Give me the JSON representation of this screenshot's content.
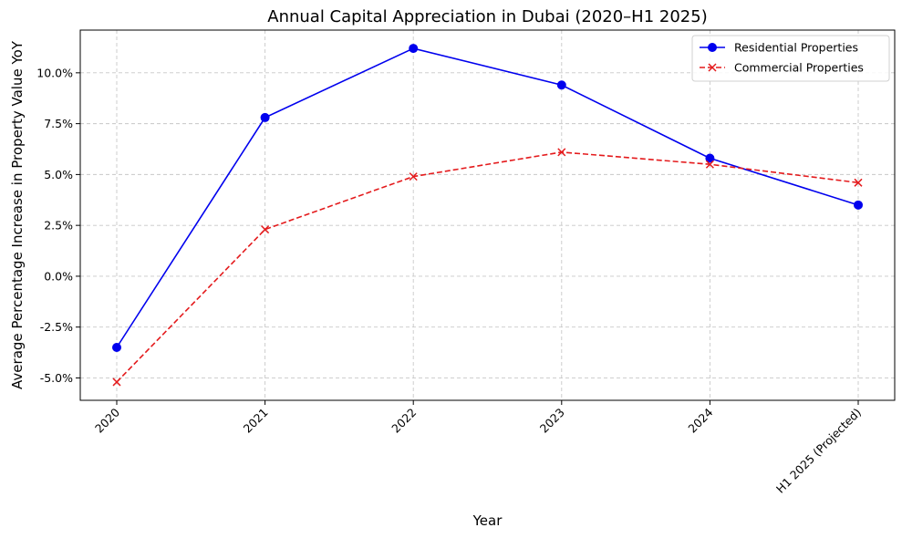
{
  "chart_data": {
    "type": "line",
    "title": "Annual Capital Appreciation in Dubai (2020–H1 2025)",
    "xlabel": "Year",
    "ylabel": "Average Percentage Increase in Property Value YoY",
    "categories": [
      "2020",
      "2021",
      "2022",
      "2023",
      "2024",
      "H1 2025 (Projected)"
    ],
    "ylim": [
      -6.1,
      12.1
    ],
    "yticks": [
      -5.0,
      -2.5,
      0.0,
      2.5,
      5.0,
      7.5,
      10.0
    ],
    "ytick_labels": [
      "-5.0%",
      "-2.5%",
      "0.0%",
      "2.5%",
      "5.0%",
      "7.5%",
      "10.0%"
    ],
    "grid": true,
    "legend_position": "top-right",
    "series": [
      {
        "name": "Residential Properties",
        "values": [
          -3.5,
          7.8,
          11.2,
          9.4,
          5.8,
          3.5
        ],
        "color": "#0000ee",
        "line_style": "solid",
        "marker": "circle"
      },
      {
        "name": "Commercial Properties",
        "values": [
          -5.2,
          2.3,
          4.9,
          6.1,
          5.5,
          4.6
        ],
        "color": "#e41a1c",
        "line_style": "dashed",
        "marker": "x"
      }
    ]
  }
}
